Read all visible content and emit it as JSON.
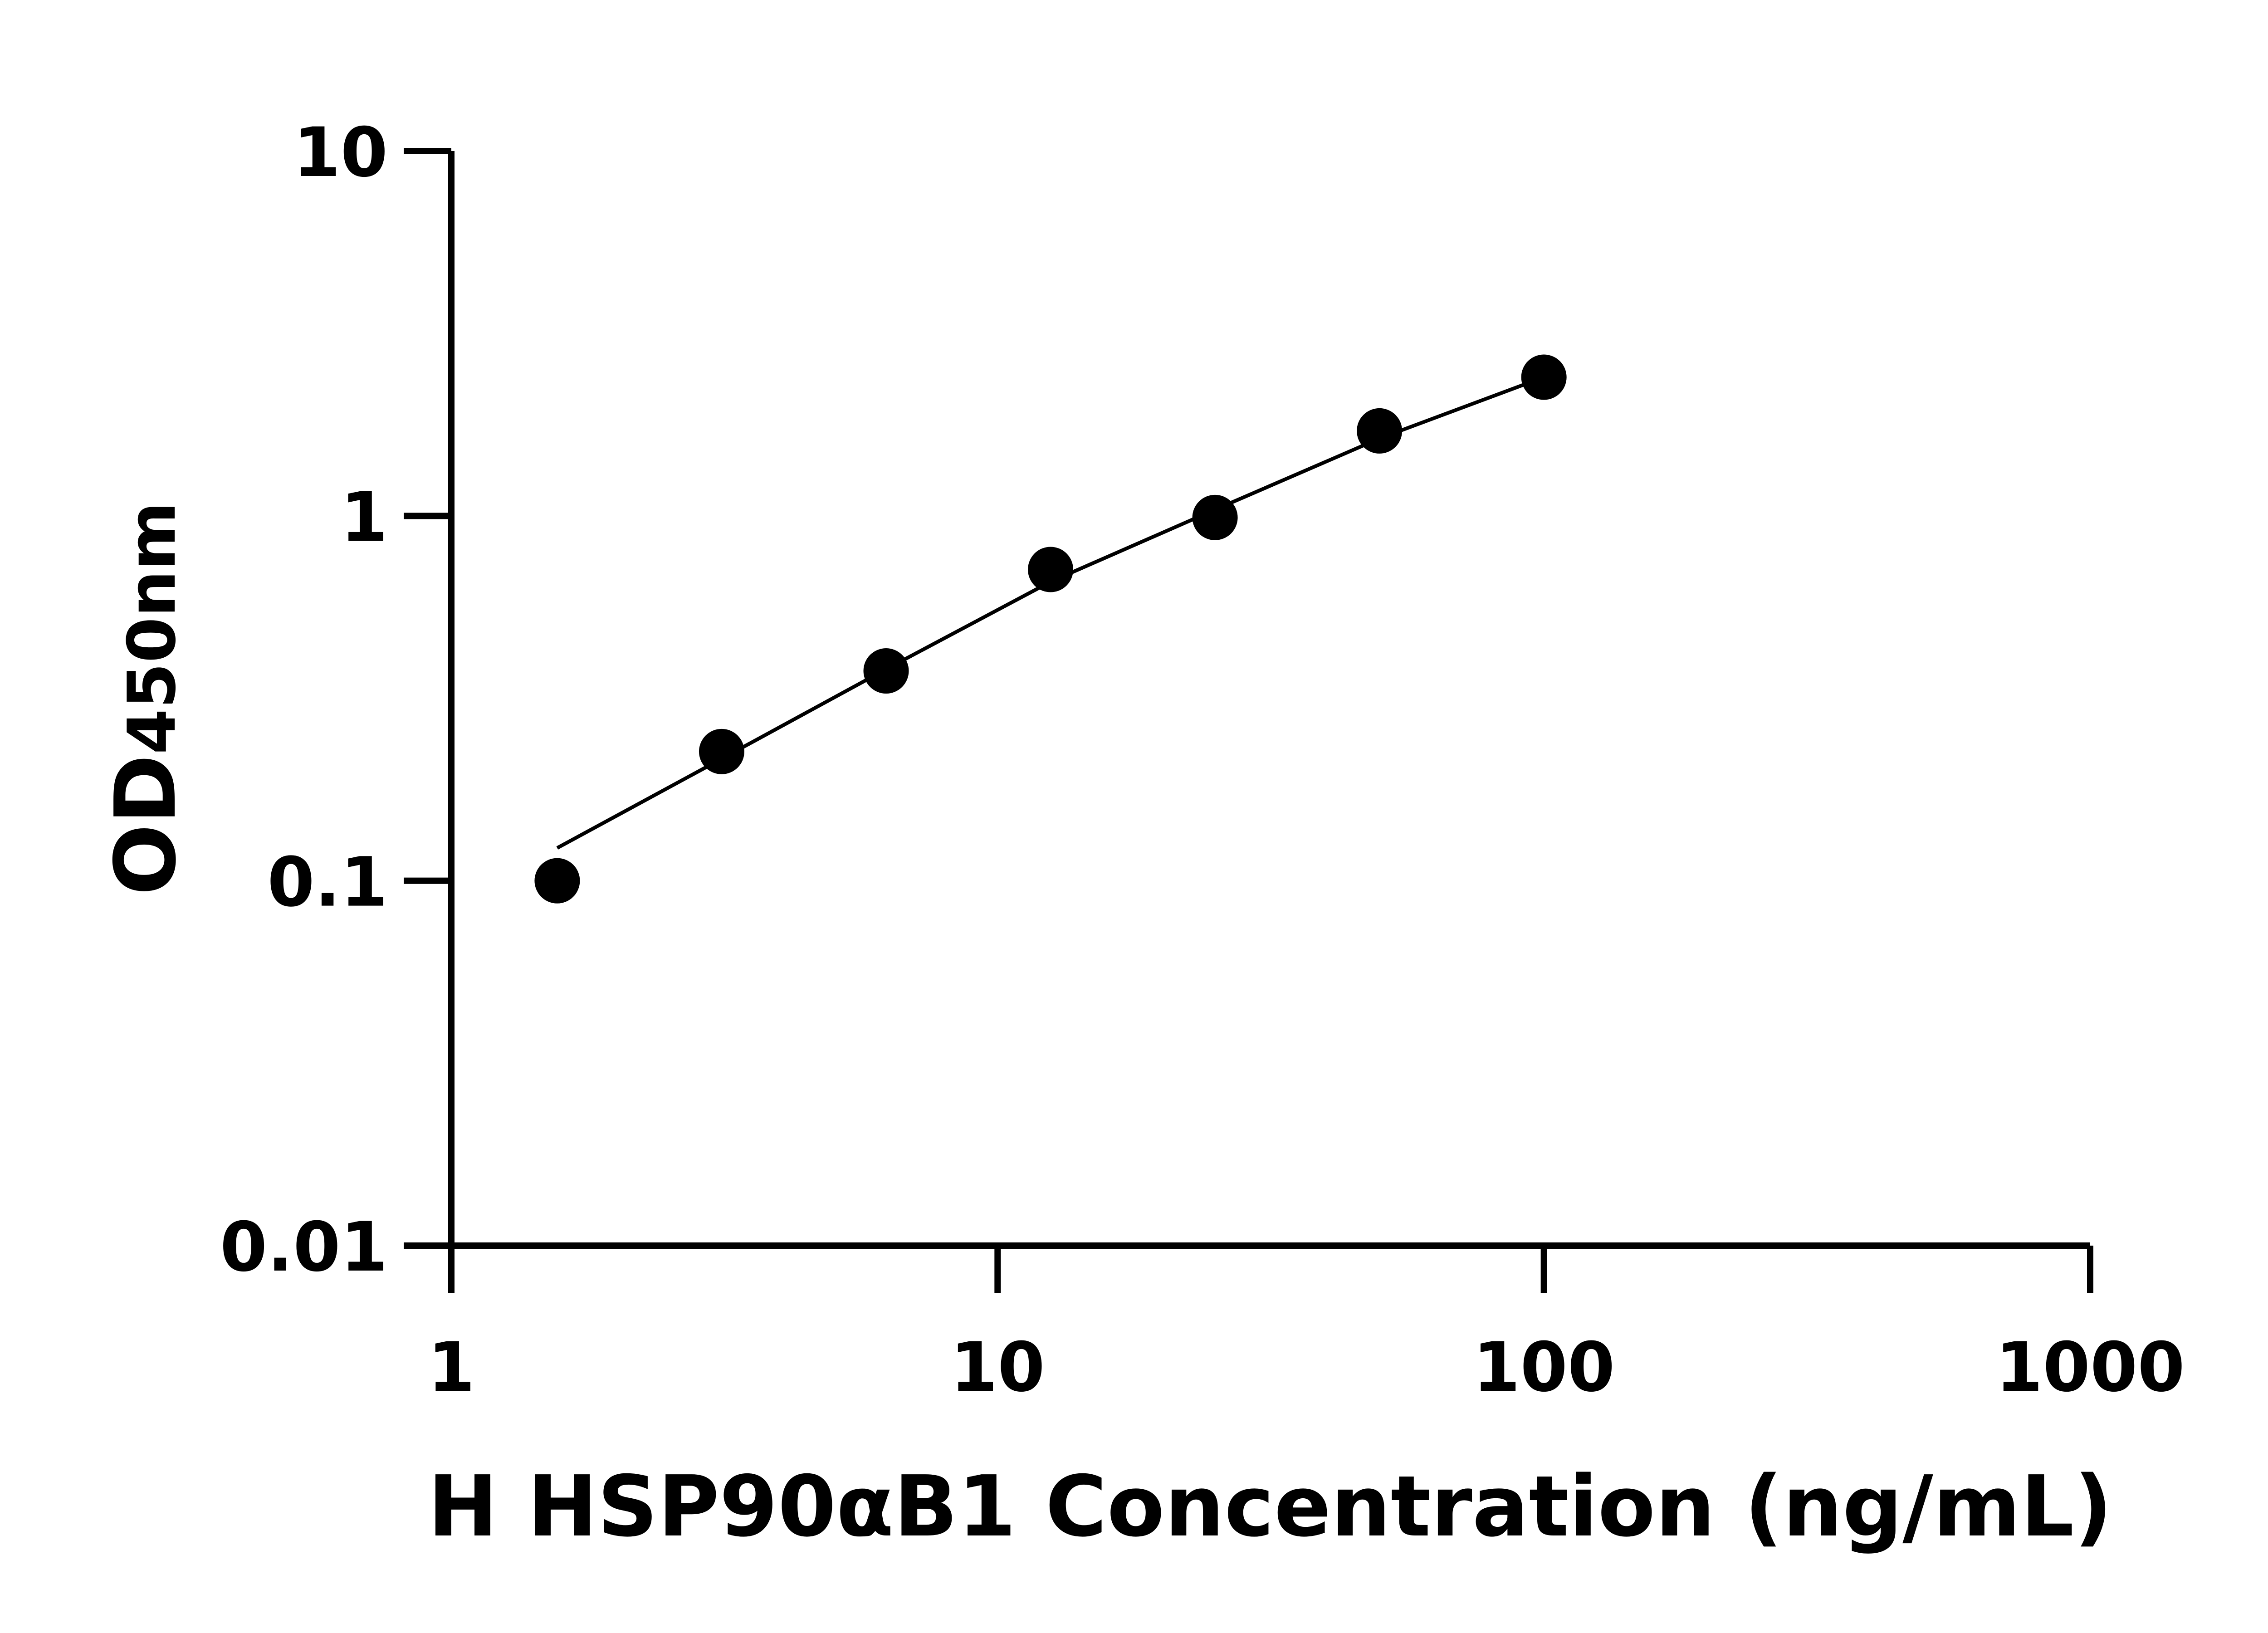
{
  "chart_data": {
    "type": "scatter",
    "title": "",
    "xlabel": "H HSP90αB1 Concentration (ng/mL)",
    "ylabel_main": "OD",
    "ylabel_sub": "450nm",
    "xscale": "log",
    "yscale": "log",
    "xlim": [
      1,
      1000
    ],
    "ylim": [
      0.01,
      10
    ],
    "x_ticks": [
      "1",
      "10",
      "100",
      "1000"
    ],
    "y_ticks": [
      "0.01",
      "0.1",
      "1",
      "10"
    ],
    "grid": false,
    "x": [
      1.5625,
      3.125,
      6.25,
      12.5,
      25,
      50,
      100
    ],
    "y": [
      0.1,
      0.226,
      0.376,
      0.713,
      0.99,
      1.71,
      2.4
    ],
    "fit_curve": {
      "x": [
        1.5625,
        3.125,
        6.25,
        12.5,
        25,
        50,
        100
      ],
      "y": [
        0.123,
        0.216,
        0.38,
        0.66,
        1.04,
        1.63,
        2.4
      ]
    },
    "colors": {
      "points": "#000000",
      "curve": "#000000",
      "axes": "#000000"
    }
  }
}
